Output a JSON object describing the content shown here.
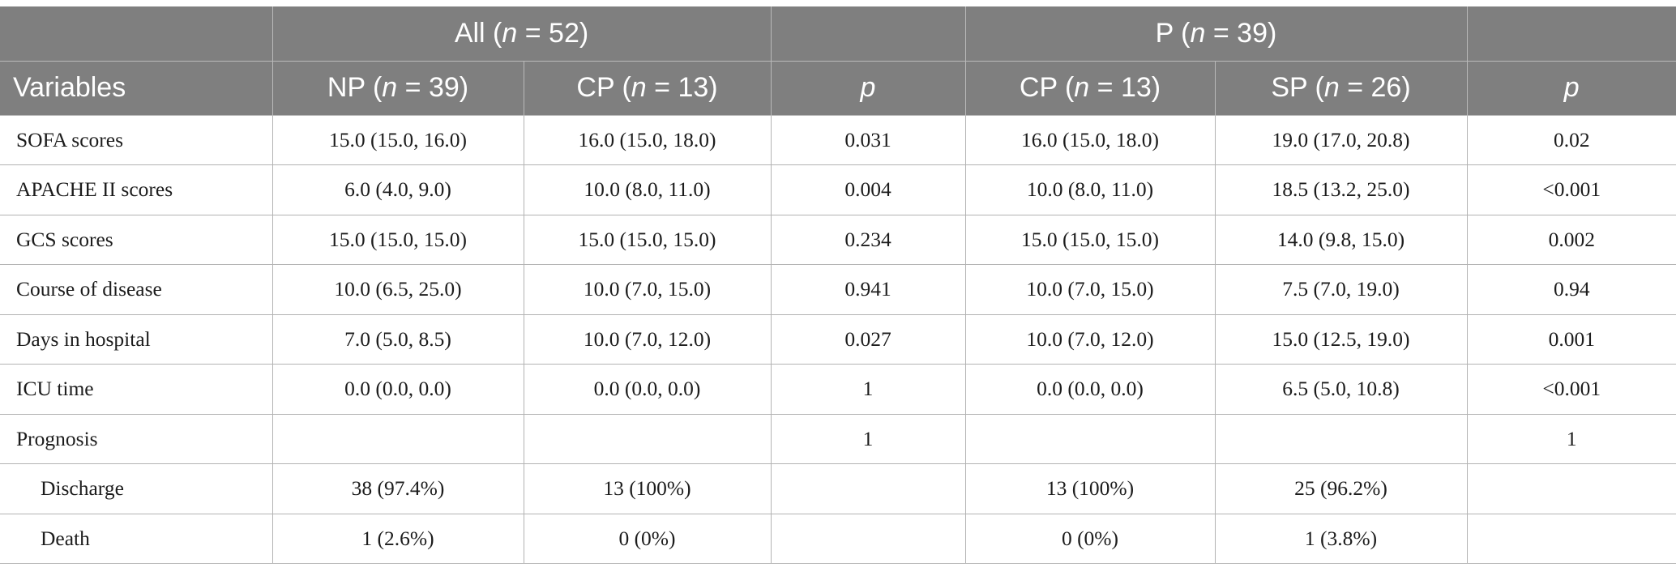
{
  "header": {
    "group_all": {
      "prefix": "All (",
      "n_symbol": "n",
      "suffix": " = 52)"
    },
    "group_p": {
      "prefix": "P (",
      "n_symbol": "n",
      "suffix": " = 39)"
    },
    "variables_label": "Variables",
    "np": {
      "prefix": "NP (",
      "n_symbol": "n",
      "suffix": " = 39)"
    },
    "cp_all": {
      "prefix": "CP (",
      "n_symbol": "n",
      "suffix": " = 13)"
    },
    "p_all": "p",
    "cp_p": {
      "prefix": "CP (",
      "n_symbol": "n",
      "suffix": " = 13)"
    },
    "sp": {
      "prefix": "SP (",
      "n_symbol": "n",
      "suffix": " = 26)"
    },
    "p_p": "p"
  },
  "rows": [
    {
      "label": "SOFA scores",
      "cells": [
        "15.0 (15.0, 16.0)",
        "16.0 (15.0, 18.0)",
        "0.031",
        "16.0 (15.0, 18.0)",
        "19.0 (17.0, 20.8)",
        "0.02"
      ]
    },
    {
      "label": "APACHE II scores",
      "cells": [
        "6.0 (4.0, 9.0)",
        "10.0 (8.0, 11.0)",
        "0.004",
        "10.0 (8.0, 11.0)",
        "18.5 (13.2, 25.0)",
        "<0.001"
      ]
    },
    {
      "label": "GCS scores",
      "cells": [
        "15.0 (15.0, 15.0)",
        "15.0 (15.0, 15.0)",
        "0.234",
        "15.0 (15.0, 15.0)",
        "14.0 (9.8, 15.0)",
        "0.002"
      ]
    },
    {
      "label": "Course of disease",
      "cells": [
        "10.0 (6.5, 25.0)",
        "10.0 (7.0, 15.0)",
        "0.941",
        "10.0 (7.0, 15.0)",
        "7.5 (7.0, 19.0)",
        "0.94"
      ]
    },
    {
      "label": "Days in hospital",
      "cells": [
        "7.0 (5.0, 8.5)",
        "10.0 (7.0, 12.0)",
        "0.027",
        "10.0 (7.0, 12.0)",
        "15.0 (12.5, 19.0)",
        "0.001"
      ]
    },
    {
      "label": "ICU time",
      "cells": [
        "0.0 (0.0, 0.0)",
        "0.0 (0.0, 0.0)",
        "1",
        "0.0 (0.0, 0.0)",
        "6.5 (5.0, 10.8)",
        "<0.001"
      ]
    },
    {
      "label": "Prognosis",
      "cells": [
        "",
        "",
        "1",
        "",
        "",
        "1"
      ]
    },
    {
      "label": "Discharge",
      "cells": [
        "38 (97.4%)",
        "13 (100%)",
        "",
        "13 (100%)",
        "25 (96.2%)",
        ""
      ]
    },
    {
      "label": "Death",
      "cells": [
        "1 (2.6%)",
        "0 (0%)",
        "",
        "0 (0%)",
        "1 (3.8%)",
        ""
      ]
    }
  ]
}
